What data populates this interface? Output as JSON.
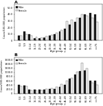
{
  "chart_data": [
    {
      "type": "bar",
      "title": "A",
      "xlabel": "Age group, y",
      "ylabel": "Cases/100,000 population",
      "categories": [
        "0-4",
        "5-9",
        "10-14",
        "15-19",
        "20-24",
        "25-29",
        "30-34",
        "35-39",
        "40-44",
        "45-49",
        "50-54",
        "55-59",
        "60-64",
        "65-69",
        "70-74",
        ">=75"
      ],
      "series": [
        {
          "name": "Male",
          "color": "#1a1a1a",
          "values": [
            8,
            14,
            10,
            4,
            4,
            5,
            8,
            10,
            14,
            18,
            24,
            28,
            35,
            40,
            42,
            40
          ]
        },
        {
          "name": "Female",
          "color": "#f0f0f0",
          "values": [
            8,
            10,
            8,
            6,
            5,
            7,
            9,
            12,
            16,
            30,
            32,
            35,
            40,
            38,
            35,
            28
          ]
        }
      ],
      "ylim": [
        0,
        55
      ],
      "yticks": [
        0,
        {
          "value": 10,
          "label": "10.0"
        },
        {
          "value": 20,
          "label": "20.0"
        },
        {
          "value": 30,
          "label": "30.0"
        },
        {
          "value": 40,
          "label": "40.0"
        },
        {
          "value": 50,
          "label": "50.0"
        }
      ],
      "legend": "upper left"
    },
    {
      "type": "bar",
      "title": "B",
      "xlabel": "Age group, y",
      "ylabel": "Cases/100,000 population",
      "categories": [
        "0-4",
        "5-9",
        "10-14",
        "15-19",
        "20-24",
        "25-29",
        "30-34",
        "35-39",
        "40-44",
        "45-49",
        "50-54",
        "55-59",
        "60-64",
        "65-69",
        "70-74",
        ">=75"
      ],
      "series": [
        {
          "name": "Male",
          "color": "#1a1a1a",
          "values": [
            400,
            380,
            200,
            200,
            200,
            200,
            220,
            230,
            330,
            420,
            700,
            900,
            1050,
            1100,
            620,
            620
          ]
        },
        {
          "name": "Female",
          "color": "#f0f0f0",
          "values": [
            350,
            360,
            160,
            160,
            160,
            210,
            250,
            310,
            460,
            620,
            720,
            1020,
            1450,
            1200,
            520,
            400
          ]
        }
      ],
      "ylim": [
        0,
        1700
      ],
      "yticks": [
        0,
        {
          "value": 200,
          "label": "200.0"
        },
        {
          "value": 400,
          "label": "400.0"
        },
        {
          "value": 600,
          "label": "600.0"
        },
        {
          "value": 800,
          "label": "800.0"
        },
        {
          "value": 1000,
          "label": "1000.0"
        },
        {
          "value": 1200,
          "label": "1200.0"
        },
        {
          "value": 1400,
          "label": "1400.0"
        },
        {
          "value": 1600,
          "label": "1600.0"
        }
      ],
      "legend": "upper left"
    }
  ]
}
